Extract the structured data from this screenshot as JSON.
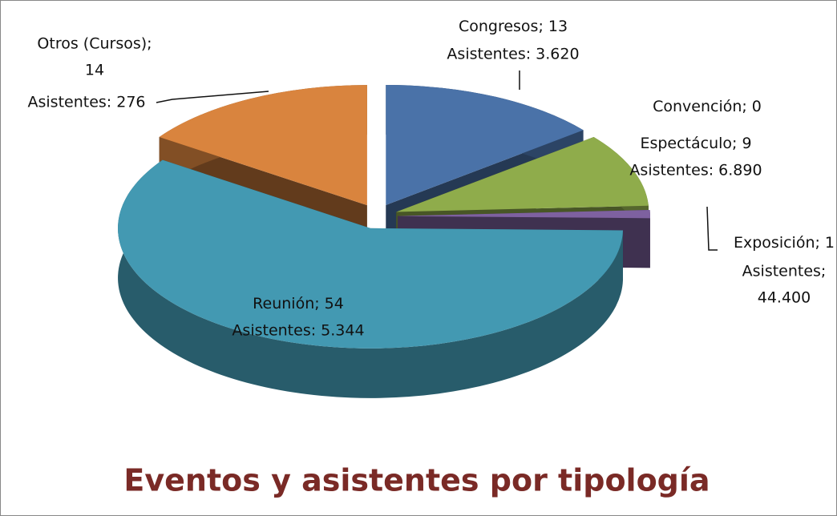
{
  "chart_data": {
    "type": "pie",
    "title": "Eventos y asistentes por tipología",
    "categories": [
      "Congresos;",
      "Convención;",
      "Espectáculo;",
      "Exposición;",
      "Reunión;",
      "Otros (Cursos);"
    ],
    "values": [
      13,
      0,
      9,
      1,
      54,
      14
    ],
    "colors": [
      "#4a72a8",
      "#8b2a22",
      "#8fac4b",
      "#7e61a0",
      "#4399b2",
      "#d9843e"
    ],
    "attendee_labels": [
      [
        "Asistentes: 3.620"
      ],
      [],
      [
        "Asistentes: 6.890"
      ],
      [
        "Asistentes;",
        "44.400"
      ],
      [
        "Asistentes: 5.344"
      ],
      [
        "Asistentes: 276"
      ]
    ]
  }
}
